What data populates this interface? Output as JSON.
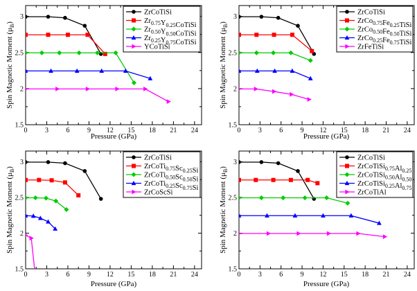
{
  "chart_data": [
    {
      "type": "line",
      "xlabel": "Pressure (GPa)",
      "ylabel_main": "Spin Magnetic Moment (",
      "ylabel_unit": "μ",
      "ylabel_sub": "B",
      "ylabel_close": ")",
      "xlim": [
        0,
        25
      ],
      "ylim": [
        1.5,
        3.15
      ],
      "xticks": [
        "0",
        "3",
        "6",
        "9",
        "12",
        "15",
        "18",
        "21",
        "24"
      ],
      "yticks": [
        "1.5",
        "2",
        "2.5",
        "3"
      ],
      "legend_position": "top-right",
      "series": [
        {
          "name_parts": [
            [
              "ZrCoTiSi",
              ""
            ]
          ],
          "color": "#000000",
          "marker": "circle",
          "x": [
            0,
            3.2,
            5.6,
            8.4,
            10.7
          ],
          "y": [
            2.995,
            2.995,
            2.98,
            2.87,
            2.48
          ]
        },
        {
          "name_parts": [
            [
              "Zr",
              ""
            ],
            [
              "0.75",
              "s"
            ],
            [
              "Y",
              ""
            ],
            [
              "0.25",
              "s"
            ],
            [
              "CoTiSi",
              ""
            ]
          ],
          "color": "#ff0000",
          "marker": "square",
          "x": [
            0,
            3.2,
            6.0,
            8.8,
            11.3
          ],
          "y": [
            2.745,
            2.745,
            2.745,
            2.745,
            2.48
          ]
        },
        {
          "name_parts": [
            [
              "Zr",
              ""
            ],
            [
              "0.50",
              "s"
            ],
            [
              "Y",
              ""
            ],
            [
              "0.50",
              "s"
            ],
            [
              "CoTiSi",
              ""
            ]
          ],
          "color": "#00cc00",
          "marker": "diamond",
          "x": [
            0,
            2.3,
            4.8,
            7.6,
            10.2,
            12.8,
            15.4
          ],
          "y": [
            2.495,
            2.495,
            2.495,
            2.495,
            2.495,
            2.495,
            2.08
          ]
        },
        {
          "name_parts": [
            [
              "Zr",
              ""
            ],
            [
              "0.25",
              "s"
            ],
            [
              "Y",
              ""
            ],
            [
              "0.75",
              "s"
            ],
            [
              "CoTiSi",
              ""
            ]
          ],
          "color": "#0000ff",
          "marker": "triangle-up",
          "x": [
            0,
            3.6,
            7.3,
            10.8,
            14.2,
            17.7
          ],
          "y": [
            2.245,
            2.245,
            2.245,
            2.245,
            2.245,
            2.14
          ]
        },
        {
          "name_parts": [
            [
              "YCoTiSi",
              ""
            ]
          ],
          "color": "#ff00ff",
          "marker": "triangle-right",
          "x": [
            0,
            4.5,
            8.8,
            13.0,
            17.0,
            20.3
          ],
          "y": [
            1.995,
            1.995,
            1.995,
            1.995,
            1.995,
            1.82
          ]
        }
      ]
    },
    {
      "type": "line",
      "xlabel": "Pressure (GPa)",
      "ylabel_main": "Spin Magnetic Moment (",
      "ylabel_unit": "μ",
      "ylabel_sub": "B",
      "ylabel_close": ")",
      "xlim": [
        0,
        25
      ],
      "ylim": [
        1.5,
        3.15
      ],
      "xticks": [
        "0",
        "3",
        "6",
        "9",
        "12",
        "15",
        "18",
        "21",
        "24"
      ],
      "yticks": [
        "1.5",
        "2",
        "2.5",
        "3"
      ],
      "legend_position": "top-right",
      "series": [
        {
          "name_parts": [
            [
              "ZrCoTiSi",
              ""
            ]
          ],
          "color": "#000000",
          "marker": "circle",
          "x": [
            0,
            3.2,
            5.6,
            8.4,
            10.7
          ],
          "y": [
            2.995,
            2.995,
            2.98,
            2.87,
            2.48
          ]
        },
        {
          "name_parts": [
            [
              "ZrCo",
              ""
            ],
            [
              "0.75",
              "s"
            ],
            [
              "Fe",
              ""
            ],
            [
              "0.25",
              "s"
            ],
            [
              "TiSi",
              ""
            ]
          ],
          "color": "#ff0000",
          "marker": "square",
          "x": [
            0,
            2.5,
            5.0,
            7.6,
            10.4
          ],
          "y": [
            2.745,
            2.745,
            2.745,
            2.745,
            2.52
          ]
        },
        {
          "name_parts": [
            [
              "ZrCo",
              ""
            ],
            [
              "0.50",
              "s"
            ],
            [
              "Fe",
              ""
            ],
            [
              "0.50",
              "s"
            ],
            [
              "TiSi",
              ""
            ]
          ],
          "color": "#00cc00",
          "marker": "diamond",
          "x": [
            0,
            2.5,
            4.9,
            7.4,
            10.2
          ],
          "y": [
            2.495,
            2.495,
            2.495,
            2.495,
            2.39
          ]
        },
        {
          "name_parts": [
            [
              "ZrCo",
              ""
            ],
            [
              "0.25",
              "s"
            ],
            [
              "Fe",
              ""
            ],
            [
              "0.75",
              "s"
            ],
            [
              "TiSi",
              ""
            ]
          ],
          "color": "#0000ff",
          "marker": "triangle-up",
          "x": [
            0,
            2.6,
            5.1,
            7.6,
            10.2
          ],
          "y": [
            2.245,
            2.245,
            2.245,
            2.245,
            2.14
          ]
        },
        {
          "name_parts": [
            [
              "ZrFeTiSi",
              ""
            ]
          ],
          "color": "#ff00ff",
          "marker": "triangle-right",
          "x": [
            0,
            2.4,
            5.0,
            7.5,
            10.0
          ],
          "y": [
            1.995,
            1.995,
            1.96,
            1.92,
            1.85
          ]
        }
      ]
    },
    {
      "type": "line",
      "xlabel": "Pressure (GPa)",
      "ylabel_main": "Spin Magnetic Moment (",
      "ylabel_unit": "μ",
      "ylabel_sub": "B",
      "ylabel_close": ")",
      "xlim": [
        0,
        25
      ],
      "ylim": [
        1.5,
        3.15
      ],
      "xticks": [
        "0",
        "3",
        "6",
        "9",
        "12",
        "15",
        "18",
        "21",
        "24"
      ],
      "yticks": [
        "1.5",
        "2",
        "2.5",
        "3"
      ],
      "legend_position": "top-right",
      "series": [
        {
          "name_parts": [
            [
              "ZrCoTiSi",
              ""
            ]
          ],
          "color": "#000000",
          "marker": "circle",
          "x": [
            0,
            3.2,
            5.6,
            8.4,
            10.7
          ],
          "y": [
            2.995,
            2.995,
            2.98,
            2.87,
            2.48
          ]
        },
        {
          "name_parts": [
            [
              "ZrCoTi",
              ""
            ],
            [
              "0.75",
              "s"
            ],
            [
              "Sc",
              ""
            ],
            [
              "0.25",
              "s"
            ],
            [
              "Si",
              ""
            ]
          ],
          "color": "#ff0000",
          "marker": "square",
          "x": [
            0,
            1.9,
            3.7,
            5.6,
            7.5
          ],
          "y": [
            2.745,
            2.745,
            2.74,
            2.71,
            2.53
          ]
        },
        {
          "name_parts": [
            [
              "ZrCoTi",
              ""
            ],
            [
              "0.50",
              "s"
            ],
            [
              "Sc",
              ""
            ],
            [
              "0.50",
              "s"
            ],
            [
              "Si",
              ""
            ]
          ],
          "color": "#00cc00",
          "marker": "diamond",
          "x": [
            0,
            1.4,
            2.9,
            4.3,
            5.8
          ],
          "y": [
            2.495,
            2.495,
            2.49,
            2.45,
            2.33
          ]
        },
        {
          "name_parts": [
            [
              "ZrCoTi",
              ""
            ],
            [
              "0.25",
              "s"
            ],
            [
              "Sc",
              ""
            ],
            [
              "0.75",
              "s"
            ],
            [
              "Si",
              ""
            ]
          ],
          "color": "#0000ff",
          "marker": "triangle-up",
          "x": [
            0,
            1.1,
            2.1,
            3.2,
            4.2
          ],
          "y": [
            2.245,
            2.24,
            2.21,
            2.16,
            2.06
          ]
        },
        {
          "name_parts": [
            [
              "ZrCoScSi",
              ""
            ]
          ],
          "color": "#ff00ff",
          "marker": "triangle-right",
          "x": [
            0,
            0.8,
            1.3
          ],
          "y": [
            1.97,
            1.93,
            1.47
          ]
        }
      ]
    },
    {
      "type": "line",
      "xlabel": "Pressure (GPa)",
      "ylabel_main": "Spin Magnetic Moment (",
      "ylabel_unit": "μ",
      "ylabel_sub": "B",
      "ylabel_close": ")",
      "xlim": [
        0,
        25
      ],
      "ylim": [
        1.5,
        3.15
      ],
      "xticks": [
        "0",
        "3",
        "6",
        "9",
        "12",
        "15",
        "18",
        "21",
        "24"
      ],
      "yticks": [
        "1.5",
        "2",
        "2.5",
        "3"
      ],
      "legend_position": "top-right",
      "series": [
        {
          "name_parts": [
            [
              "ZrCoTiSi",
              ""
            ]
          ],
          "color": "#000000",
          "marker": "circle",
          "x": [
            0,
            3.2,
            5.6,
            8.4,
            10.7
          ],
          "y": [
            2.995,
            2.995,
            2.98,
            2.87,
            2.48
          ]
        },
        {
          "name_parts": [
            [
              "ZrCoTiSi",
              ""
            ],
            [
              "0.75",
              "s"
            ],
            [
              "Al",
              ""
            ],
            [
              "0.25",
              "s"
            ]
          ],
          "color": "#ff0000",
          "marker": "square",
          "x": [
            0,
            2.4,
            4.9,
            7.4,
            9.8,
            11.2
          ],
          "y": [
            2.745,
            2.745,
            2.745,
            2.745,
            2.745,
            2.7
          ]
        },
        {
          "name_parts": [
            [
              "ZrCoTiSi",
              ""
            ],
            [
              "0.50",
              "s"
            ],
            [
              "Al",
              ""
            ],
            [
              "0.50",
              "s"
            ]
          ],
          "color": "#00cc00",
          "marker": "diamond",
          "x": [
            0,
            3.2,
            6.3,
            9.4,
            12.5,
            15.5
          ],
          "y": [
            2.495,
            2.495,
            2.495,
            2.495,
            2.495,
            2.42
          ]
        },
        {
          "name_parts": [
            [
              "ZrCoTiSi",
              ""
            ],
            [
              "0.25",
              "s"
            ],
            [
              "Al",
              ""
            ],
            [
              "0.75",
              "s"
            ]
          ],
          "color": "#0000ff",
          "marker": "triangle-up",
          "x": [
            0,
            4.0,
            8.0,
            12.0,
            16.0,
            20.0
          ],
          "y": [
            2.245,
            2.245,
            2.245,
            2.245,
            2.245,
            2.14
          ]
        },
        {
          "name_parts": [
            [
              "ZrCoTiAl",
              ""
            ]
          ],
          "color": "#ff00ff",
          "marker": "triangle-right",
          "x": [
            0,
            4.2,
            8.5,
            12.8,
            17.0,
            20.8
          ],
          "y": [
            1.995,
            1.995,
            1.995,
            1.995,
            1.995,
            1.95
          ]
        }
      ]
    }
  ]
}
